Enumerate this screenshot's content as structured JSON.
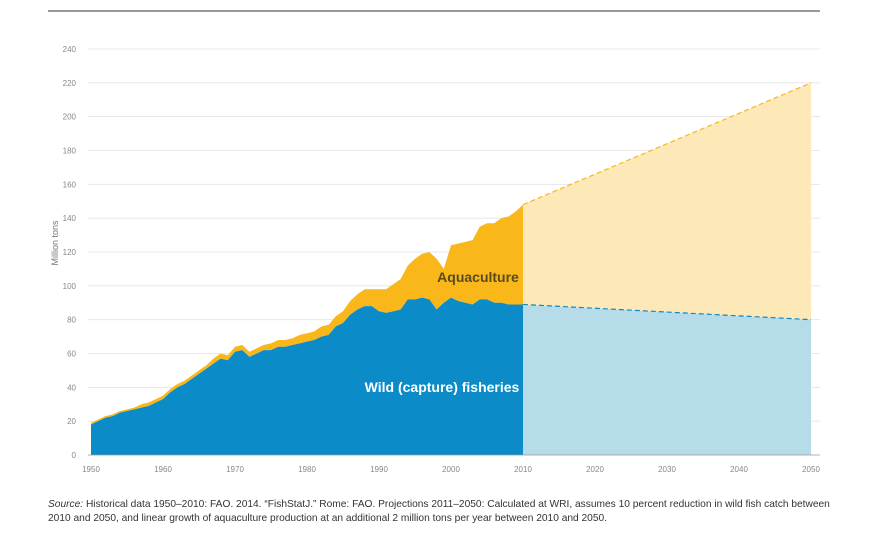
{
  "chart_data": {
    "type": "area",
    "ylabel": "Million tons",
    "ylim": [
      0,
      240
    ],
    "yticks": [
      "0",
      "20",
      "40",
      "60",
      "80",
      "100",
      "120",
      "140",
      "160",
      "180",
      "200",
      "220",
      "240"
    ],
    "xlim": [
      1950,
      2050
    ],
    "xticks": [
      "1950",
      "1960",
      "1970",
      "1980",
      "1990",
      "2000",
      "2010",
      "2020",
      "2030",
      "2040",
      "2050"
    ],
    "grid": true,
    "stacked": true,
    "colors": {
      "wild": "#0b8cc8",
      "aquaculture": "#f9b71a",
      "wild_projection": "#b6dbe9",
      "aquaculture_projection": "#fde8b8"
    },
    "series": [
      {
        "name": "Wild (capture) fisheries",
        "x": [
          1950,
          1951,
          1952,
          1953,
          1954,
          1955,
          1956,
          1957,
          1958,
          1959,
          1960,
          1961,
          1962,
          1963,
          1964,
          1965,
          1966,
          1967,
          1968,
          1969,
          1970,
          1971,
          1972,
          1973,
          1974,
          1975,
          1976,
          1977,
          1978,
          1979,
          1980,
          1981,
          1982,
          1983,
          1984,
          1985,
          1986,
          1987,
          1988,
          1989,
          1990,
          1991,
          1992,
          1993,
          1994,
          1995,
          1996,
          1997,
          1998,
          1999,
          2000,
          2001,
          2002,
          2003,
          2004,
          2005,
          2006,
          2007,
          2008,
          2009,
          2010
        ],
        "values": [
          18,
          20,
          22,
          23,
          25,
          26,
          27,
          28,
          29,
          31,
          33,
          37,
          40,
          42,
          45,
          48,
          51,
          54,
          57,
          56,
          61,
          62,
          58,
          60,
          62,
          62,
          64,
          64,
          65,
          66,
          67,
          68,
          70,
          71,
          76,
          78,
          83,
          86,
          88,
          88,
          85,
          84,
          85,
          86,
          92,
          92,
          93,
          92,
          86,
          90,
          93,
          91,
          90,
          89,
          92,
          92,
          90,
          90,
          89,
          89,
          89
        ],
        "projection": {
          "x": [
            2010,
            2050
          ],
          "values": [
            89,
            80
          ]
        }
      },
      {
        "name": "Aquaculture",
        "x": [
          1950,
          1951,
          1952,
          1953,
          1954,
          1955,
          1956,
          1957,
          1958,
          1959,
          1960,
          1961,
          1962,
          1963,
          1964,
          1965,
          1966,
          1967,
          1968,
          1969,
          1970,
          1971,
          1972,
          1973,
          1974,
          1975,
          1976,
          1977,
          1978,
          1979,
          1980,
          1981,
          1982,
          1983,
          1984,
          1985,
          1986,
          1987,
          1988,
          1989,
          1990,
          1991,
          1992,
          1993,
          1994,
          1995,
          1996,
          1997,
          1998,
          1999,
          2000,
          2001,
          2002,
          2003,
          2004,
          2005,
          2006,
          2007,
          2008,
          2009,
          2010
        ],
        "values": [
          1,
          1,
          1,
          1,
          1,
          1,
          1,
          2,
          2,
          2,
          2,
          2,
          2,
          2,
          2,
          2,
          2,
          3,
          3,
          3,
          3,
          3,
          3,
          3,
          3,
          4,
          4,
          4,
          4,
          5,
          5,
          5,
          6,
          6,
          6,
          7,
          8,
          9,
          10,
          10,
          13,
          14,
          16,
          18,
          20,
          24,
          26,
          28,
          30,
          20,
          31,
          34,
          36,
          38,
          43,
          45,
          47,
          50,
          52,
          55,
          59
        ],
        "projection": {
          "x": [
            2010,
            2050
          ],
          "values": [
            59,
            140
          ]
        }
      }
    ]
  },
  "labels": {
    "aquaculture": "Aquaculture",
    "wild": "Wild (capture) fisheries"
  },
  "source": {
    "label": "Source:",
    "text": "Historical data 1950–2010: FAO. 2014. “FishStatJ.” Rome: FAO. Projections 2011–2050: Calculated at WRI, assumes 10 percent reduction in wild fish catch between 2010 and 2050, and linear growth of aquaculture production at an additional 2 million tons per year between 2010 and 2050."
  }
}
